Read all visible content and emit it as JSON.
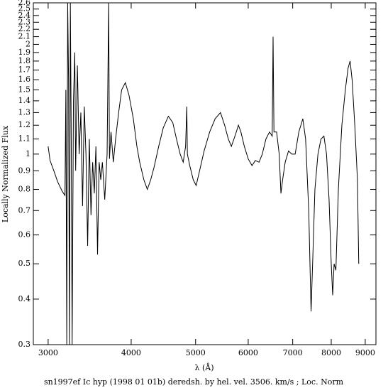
{
  "chart_data": {
    "type": "line",
    "title": "sn1997ef Ic hyp (1998 01 01b) deredsh. by hel. vel.  3506. km/s ;  Loc. Norm",
    "x_label": "λ (Å)",
    "y_label": "Locally Normalized Flux",
    "x_scale": "log",
    "y_scale": "log",
    "xlim": [
      2850,
      9340
    ],
    "ylim": [
      0.3,
      2.6
    ],
    "xticks": [
      3000,
      4000,
      5000,
      6000,
      7000,
      8000,
      9000
    ],
    "yticks": [
      0.3,
      0.4,
      0.5,
      0.6,
      0.7,
      0.8,
      0.9,
      1,
      1.1,
      1.2,
      1.3,
      1.4,
      1.5,
      1.6,
      1.7,
      1.8,
      1.9,
      2,
      2.1,
      2.2,
      2.3,
      2.4,
      2.5,
      2.6
    ],
    "series": [
      {
        "color": "#000000",
        "x": [
          3000,
          3020,
          3060,
          3100,
          3150,
          3180,
          3190,
          3200,
          3210,
          3220,
          3230,
          3240,
          3250,
          3260,
          3275,
          3290,
          3300,
          3320,
          3340,
          3360,
          3380,
          3400,
          3420,
          3440,
          3460,
          3480,
          3500,
          3520,
          3540,
          3560,
          3580,
          3600,
          3620,
          3650,
          3680,
          3700,
          3710,
          3730,
          3760,
          3790,
          3830,
          3870,
          3920,
          3970,
          4030,
          4080,
          4120,
          4180,
          4230,
          4280,
          4330,
          4400,
          4470,
          4550,
          4620,
          4680,
          4740,
          4790,
          4830,
          4850,
          4860,
          4900,
          4960,
          5010,
          5070,
          5150,
          5250,
          5350,
          5450,
          5530,
          5600,
          5660,
          5740,
          5800,
          5850,
          5920,
          6000,
          6080,
          6150,
          6230,
          6300,
          6380,
          6460,
          6520,
          6540,
          6560,
          6620,
          6680,
          6720,
          6760,
          6820,
          6900,
          6980,
          7060,
          7150,
          7250,
          7320,
          7400,
          7460,
          7500,
          7560,
          7640,
          7720,
          7800,
          7870,
          7940,
          8000,
          8040,
          8080,
          8130,
          8200,
          8300,
          8400,
          8480,
          8540,
          8600,
          8680,
          8760,
          8800
        ],
        "values": [
          1.05,
          0.96,
          0.9,
          0.84,
          0.79,
          0.77,
          1.5,
          0.3,
          2.6,
          1.6,
          0.3,
          2.6,
          1.1,
          0.3,
          1.4,
          1.9,
          0.9,
          1.75,
          1.0,
          1.3,
          0.72,
          1.35,
          1.0,
          0.56,
          1.1,
          0.68,
          0.95,
          0.78,
          1.05,
          0.53,
          0.95,
          0.85,
          0.95,
          0.75,
          1.0,
          2.6,
          0.97,
          1.15,
          0.95,
          1.1,
          1.3,
          1.5,
          1.57,
          1.45,
          1.25,
          1.05,
          0.95,
          0.85,
          0.8,
          0.85,
          0.92,
          1.05,
          1.18,
          1.27,
          1.22,
          1.1,
          1.0,
          0.95,
          1.05,
          1.35,
          1.0,
          0.93,
          0.85,
          0.82,
          0.9,
          1.02,
          1.15,
          1.25,
          1.3,
          1.2,
          1.1,
          1.05,
          1.13,
          1.2,
          1.15,
          1.05,
          0.97,
          0.93,
          0.96,
          0.95,
          1.0,
          1.1,
          1.15,
          1.12,
          2.1,
          1.15,
          1.15,
          1.0,
          0.78,
          0.85,
          0.95,
          1.02,
          1.0,
          1.0,
          1.15,
          1.25,
          1.1,
          0.7,
          0.37,
          0.5,
          0.8,
          1.0,
          1.1,
          1.12,
          1.0,
          0.75,
          0.5,
          0.41,
          0.5,
          0.48,
          0.8,
          1.2,
          1.5,
          1.72,
          1.8,
          1.6,
          1.2,
          0.85,
          0.5
        ]
      }
    ]
  }
}
